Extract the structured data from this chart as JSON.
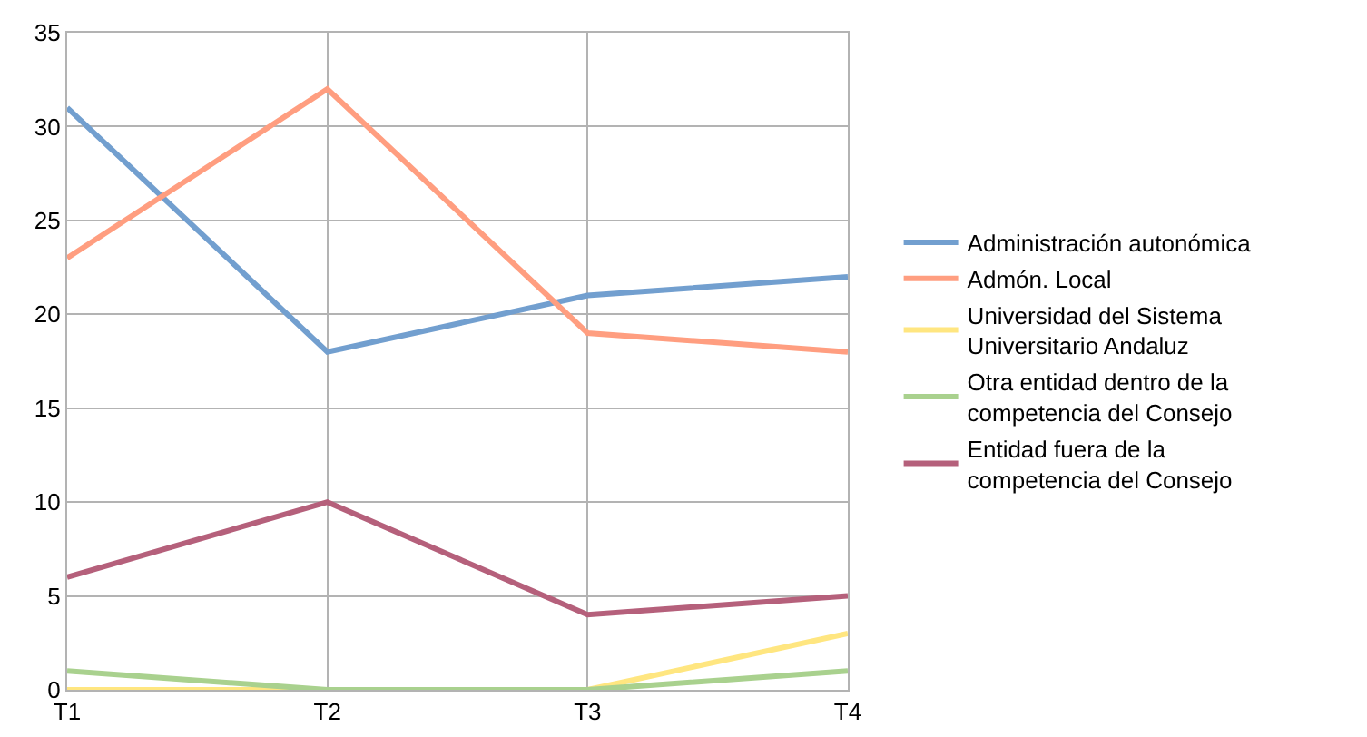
{
  "chart_data": {
    "type": "line",
    "categories": [
      "T1",
      "T2",
      "T3",
      "T4"
    ],
    "series": [
      {
        "name": "Administración autonómica",
        "color": "#729fcf",
        "values": [
          31,
          18,
          21,
          22
        ]
      },
      {
        "name": "Admón. Local",
        "color": "#ff9e80",
        "values": [
          23,
          32,
          19,
          18
        ]
      },
      {
        "name": "Universidad del Sistema Universitario Andaluz",
        "color": "#ffe680",
        "values": [
          0,
          0,
          0,
          3
        ]
      },
      {
        "name": "Otra entidad dentro de la competencia del Consejo",
        "color": "#a9d18e",
        "values": [
          1,
          0,
          0,
          1
        ]
      },
      {
        "name": "Entidad fuera de la competencia del Consejo",
        "color": "#b5607b",
        "values": [
          6,
          10,
          4,
          5
        ]
      }
    ],
    "ylim": [
      0,
      35
    ],
    "yticks": [
      0,
      5,
      10,
      15,
      20,
      25,
      30,
      35
    ],
    "grid": true,
    "legend": "right",
    "marker": "none",
    "line_style": "solid"
  }
}
